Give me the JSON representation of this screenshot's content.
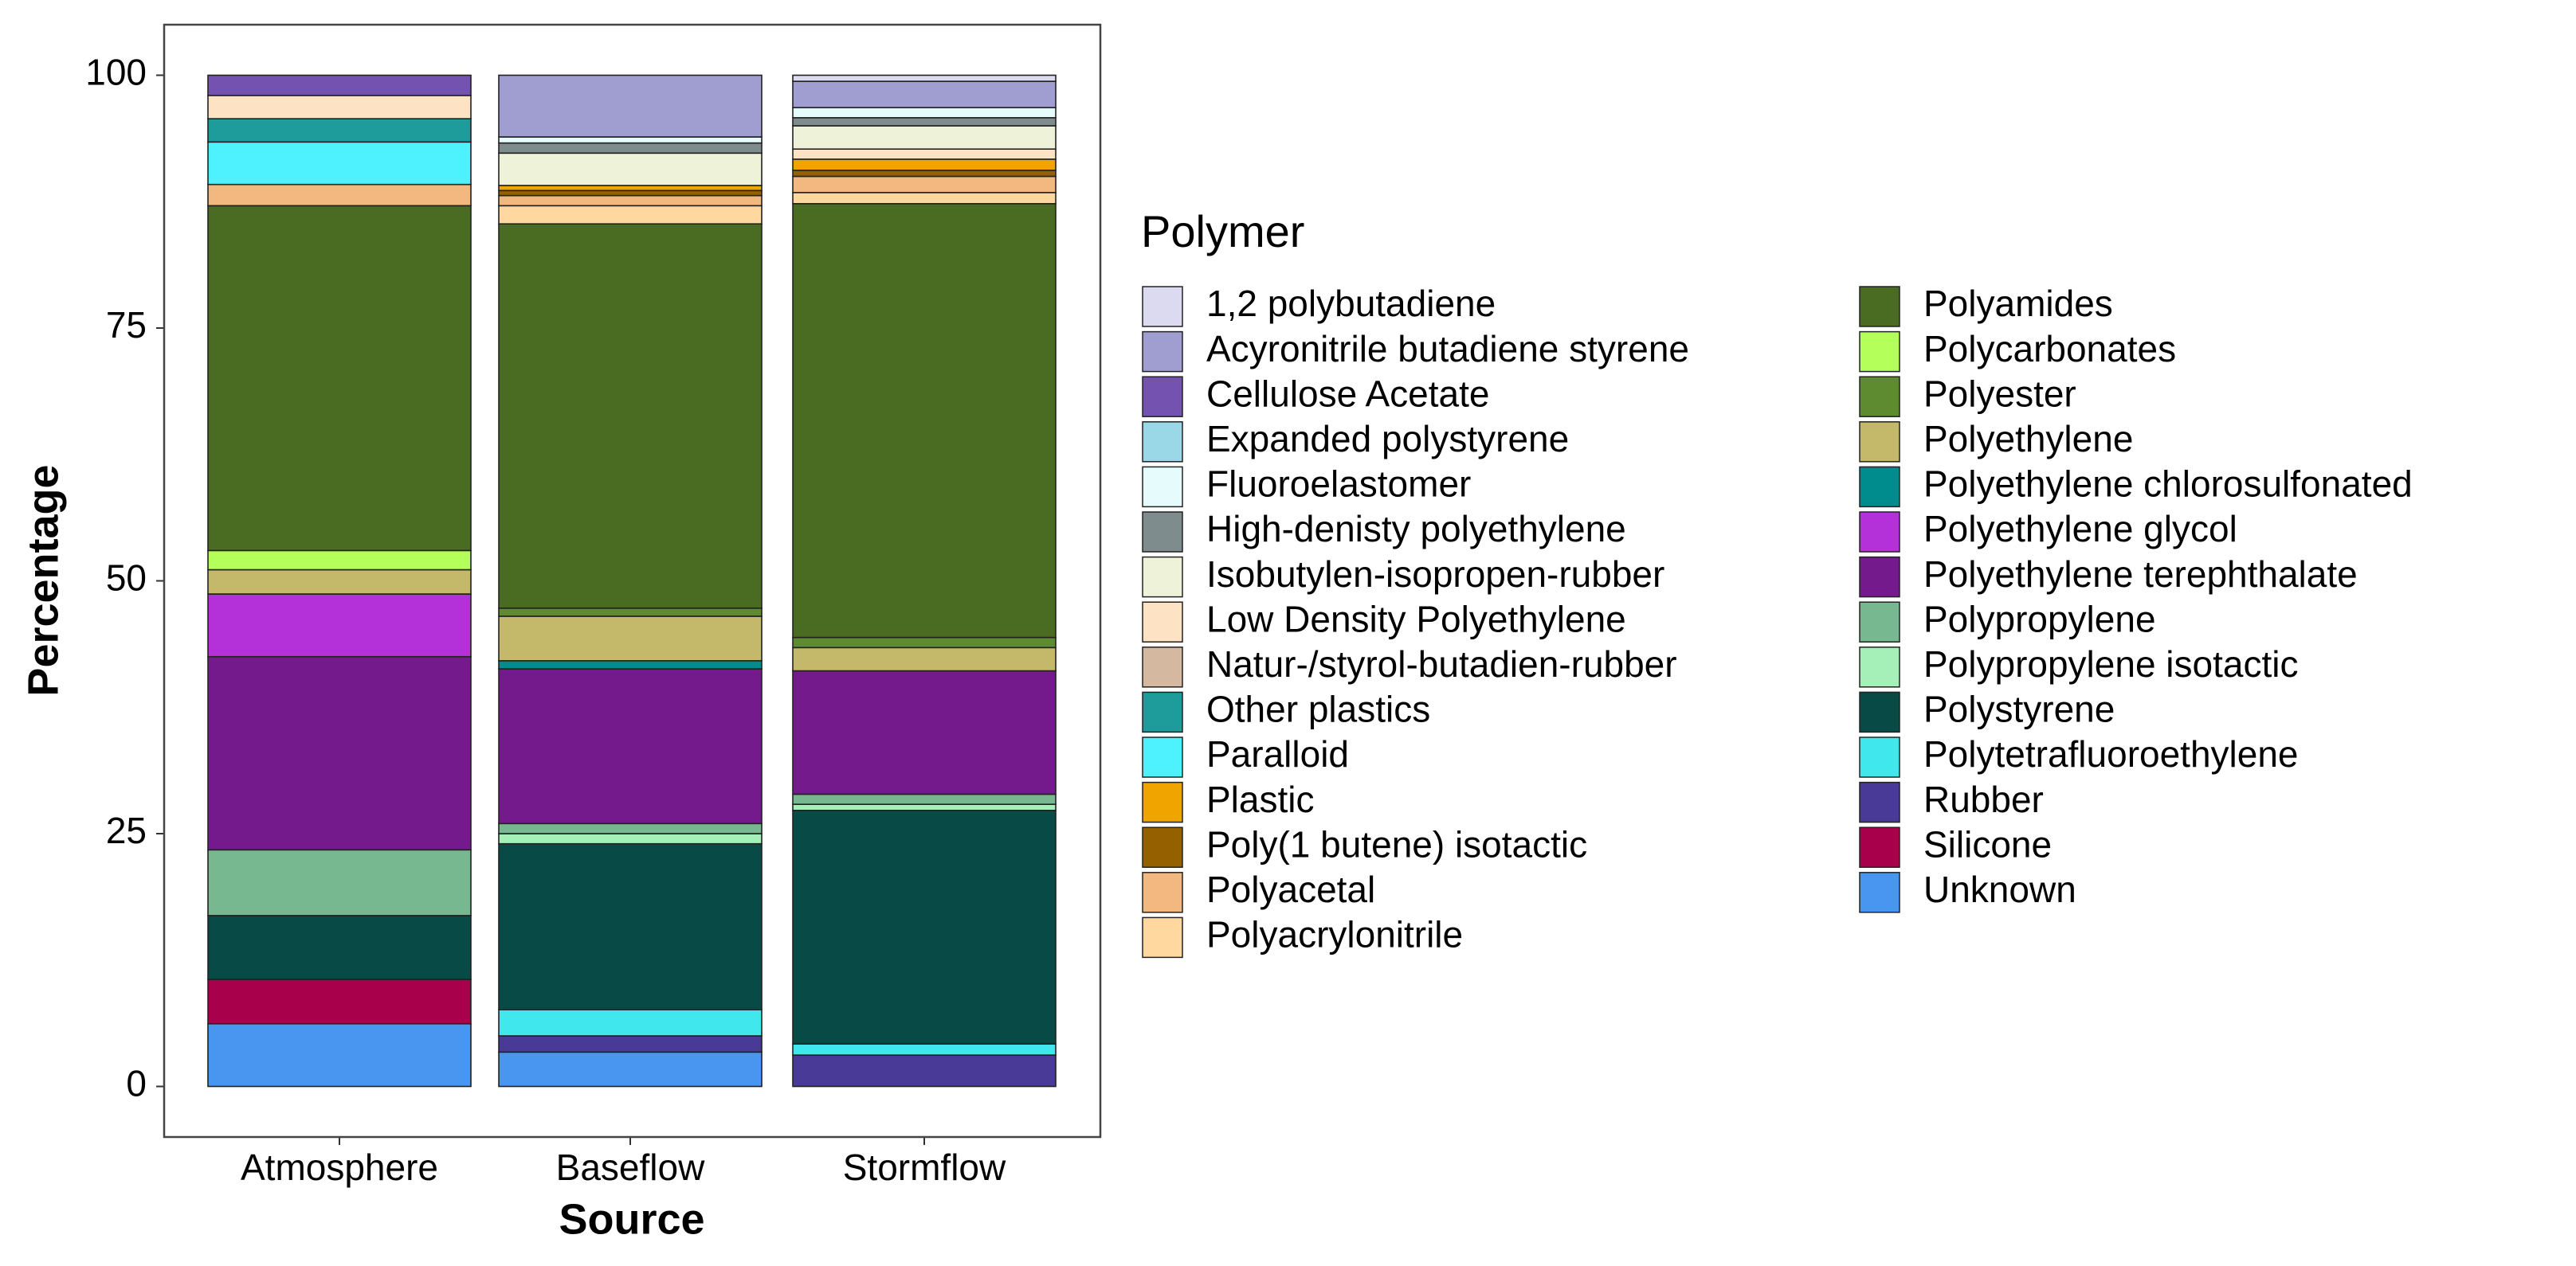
{
  "chart_data": {
    "type": "stacked_bar",
    "x_label": "Source",
    "y_label": "Percentage",
    "legend_title": "Polymer",
    "legend": "right",
    "grid": false,
    "categories": [
      "Atmosphere",
      "Baseflow",
      "Stormflow"
    ],
    "ylim": [
      -5,
      105
    ],
    "yticks": [
      0,
      25,
      50,
      75,
      100
    ],
    "series": [
      {
        "name": "1,2 polybutadiene",
        "color": "#dcdaf0",
        "values": [
          0,
          0,
          0.6
        ]
      },
      {
        "name": "Acyronitrile butadiene styrene",
        "color": "#a09ed0",
        "values": [
          0,
          6.1,
          2.6
        ]
      },
      {
        "name": "Cellulose Acetate",
        "color": "#7452b0",
        "values": [
          2.0,
          0,
          0
        ]
      },
      {
        "name": "Expanded polystyrene",
        "color": "#9ad8e8",
        "values": [
          0,
          0,
          0
        ]
      },
      {
        "name": "Fluoroelastomer",
        "color": "#e6fbfb",
        "values": [
          0,
          0.6,
          1.0
        ]
      },
      {
        "name": "High-denisty polyethylene",
        "color": "#7f8c8d",
        "values": [
          0,
          1.0,
          0.8
        ]
      },
      {
        "name": "Isobutylen-isopropen-rubber",
        "color": "#eef2d9",
        "values": [
          0,
          3.2,
          2.3
        ]
      },
      {
        "name": "Low Density Polyethylene",
        "color": "#fde2c4",
        "values": [
          2.3,
          0,
          1.0
        ]
      },
      {
        "name": "Natur-/styrol-butadien-rubber",
        "color": "#d4b8a0",
        "values": [
          0,
          0,
          0
        ]
      },
      {
        "name": "Other plastics",
        "color": "#1e9b9b",
        "values": [
          2.3,
          0,
          0
        ]
      },
      {
        "name": "Paralloid",
        "color": "#4ef2ff",
        "values": [
          4.2,
          0,
          0
        ]
      },
      {
        "name": "Plastic",
        "color": "#f0a400",
        "values": [
          0,
          0.5,
          1.1
        ]
      },
      {
        "name": "Poly(1 butene) isotactic",
        "color": "#946000",
        "values": [
          0,
          0.5,
          0.6
        ]
      },
      {
        "name": "Polyacetal",
        "color": "#f2b880",
        "values": [
          2.1,
          1.0,
          1.6
        ]
      },
      {
        "name": "Polyacrylonitrile",
        "color": "#ffd8a0",
        "values": [
          0,
          1.8,
          1.1
        ]
      },
      {
        "name": "Polyamides",
        "color": "#4a6b22",
        "values": [
          34.1,
          38.0,
          42.9
        ]
      },
      {
        "name": "Polycarbonates",
        "color": "#b4ff5a",
        "values": [
          1.9,
          0,
          0
        ]
      },
      {
        "name": "Polyester",
        "color": "#5e8a30",
        "values": [
          0,
          0.8,
          1.0
        ]
      },
      {
        "name": "Polyethylene",
        "color": "#c4b86a",
        "values": [
          2.4,
          4.4,
          2.3
        ]
      },
      {
        "name": "Polyethylene chlorosulfonated",
        "color": "#008c8c",
        "values": [
          0,
          0.8,
          0
        ]
      },
      {
        "name": "Polyethylene glycol",
        "color": "#b430d8",
        "values": [
          6.2,
          0,
          0
        ]
      },
      {
        "name": "Polyethylene terephthalate",
        "color": "#741a8c",
        "values": [
          19.1,
          15.3,
          12.2
        ]
      },
      {
        "name": "Polypropylene",
        "color": "#78b890",
        "values": [
          6.5,
          1.0,
          1.0
        ]
      },
      {
        "name": "Polypropylene isotactic",
        "color": "#a4f0b8",
        "values": [
          0,
          1.0,
          0.6
        ]
      },
      {
        "name": "Polystyrene",
        "color": "#074a46",
        "values": [
          6.3,
          16.4,
          23.1
        ]
      },
      {
        "name": "Polytetrafluoroethylene",
        "color": "#40e8ee",
        "values": [
          0,
          2.6,
          1.1
        ]
      },
      {
        "name": "Rubber",
        "color": "#4a3a98",
        "values": [
          0,
          1.6,
          3.1
        ]
      },
      {
        "name": "Silicone",
        "color": "#a8004a",
        "values": [
          4.4,
          0,
          0
        ]
      },
      {
        "name": "Unknown",
        "color": "#4896f0",
        "values": [
          6.2,
          3.4,
          0
        ]
      }
    ]
  }
}
